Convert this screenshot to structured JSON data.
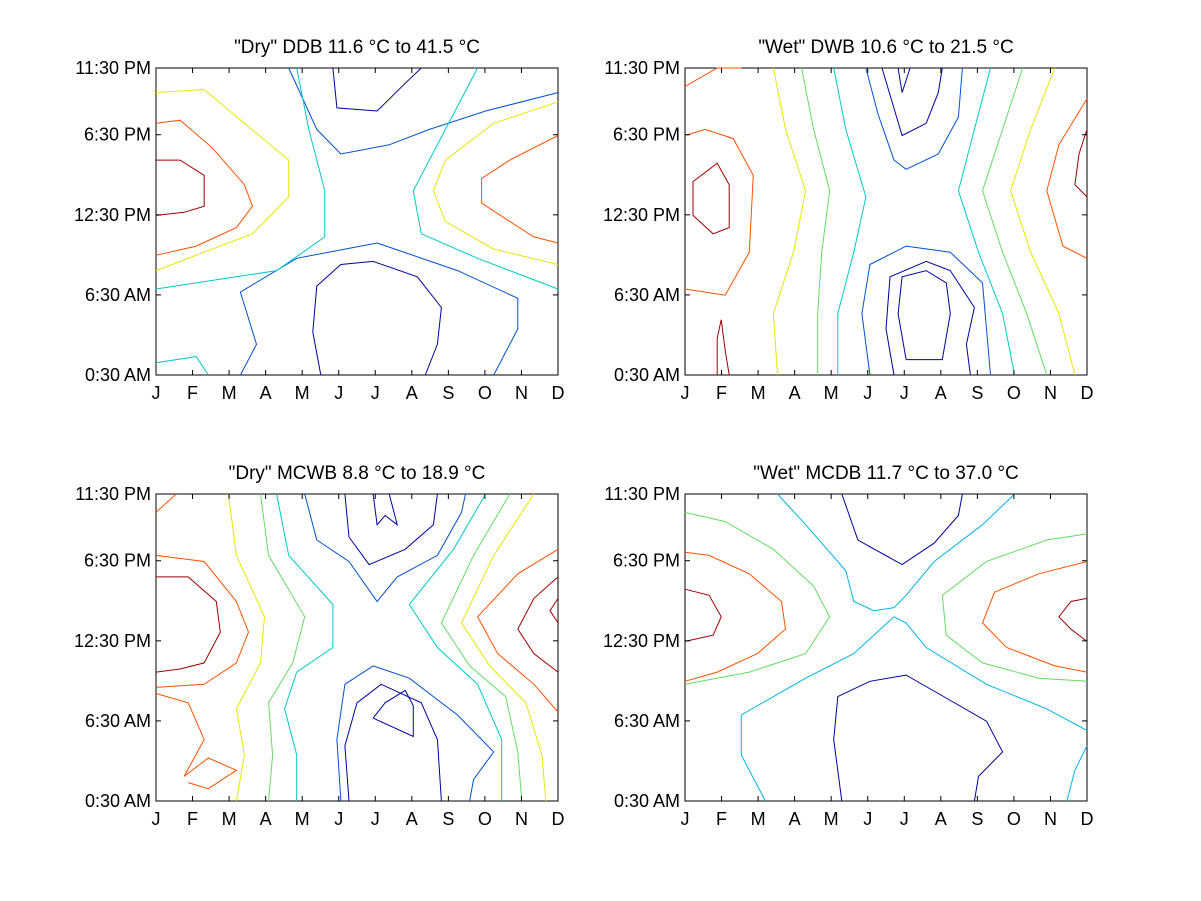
{
  "chart_data": [
    {
      "type": "contour",
      "title": "\"Dry\" DDB  11.6 °C to  41.5 °C",
      "x_tick_labels": [
        "J",
        "F",
        "M",
        "A",
        "M",
        "J",
        "J",
        "A",
        "S",
        "O",
        "N",
        "D"
      ],
      "y_tick_labels": [
        "11:30 PM",
        "6:30 PM",
        "12:30 PM",
        "6:30 AM",
        "0:30 AM"
      ],
      "ylim": [
        "0:30 AM",
        "11:30 PM"
      ],
      "range_c": [
        11.6,
        41.5
      ],
      "colors": {
        "blue": "#0000a0",
        "mid_blue": "#0050d0",
        "cyan": "#00c8c8",
        "yellow": "#e6e600",
        "orange": "#ff5000",
        "red": "#a00000"
      }
    },
    {
      "type": "contour",
      "title": "\"Wet\" DWB  10.6 °C to  21.5 °C",
      "x_tick_labels": [
        "J",
        "F",
        "M",
        "A",
        "M",
        "J",
        "J",
        "A",
        "S",
        "O",
        "N",
        "D"
      ],
      "y_tick_labels": [
        "11:30 PM",
        "6:30 PM",
        "12:30 PM",
        "6:30 AM",
        "0:30 AM"
      ],
      "ylim": [
        "0:30 AM",
        "11:30 PM"
      ],
      "range_c": [
        10.6,
        21.5
      ]
    },
    {
      "type": "contour",
      "title": "\"Dry\" MCWB   8.8 °C to  18.9 °C",
      "x_tick_labels": [
        "J",
        "F",
        "M",
        "A",
        "M",
        "J",
        "J",
        "A",
        "S",
        "O",
        "N",
        "D"
      ],
      "y_tick_labels": [
        "11:30 PM",
        "6:30 PM",
        "12:30 PM",
        "6:30 AM",
        "0:30 AM"
      ],
      "ylim": [
        "0:30 AM",
        "11:30 PM"
      ],
      "range_c": [
        8.8,
        18.9
      ]
    },
    {
      "type": "contour",
      "title": "\"Wet\" MCDB  11.7 °C to  37.0 °C",
      "x_tick_labels": [
        "J",
        "F",
        "M",
        "A",
        "M",
        "J",
        "J",
        "A",
        "S",
        "O",
        "N",
        "D"
      ],
      "y_tick_labels": [
        "11:30 PM",
        "6:30 PM",
        "12:30 PM",
        "6:30 AM",
        "0:30 AM"
      ],
      "ylim": [
        "0:30 AM",
        "11:30 PM"
      ],
      "range_c": [
        11.7,
        37.0
      ]
    }
  ]
}
